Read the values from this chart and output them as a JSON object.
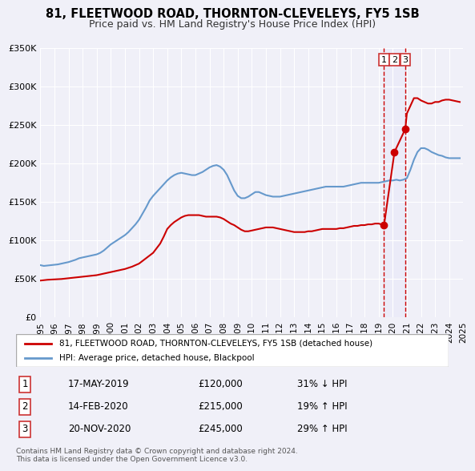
{
  "title": "81, FLEETWOOD ROAD, THORNTON-CLEVELEYS, FY5 1SB",
  "subtitle": "Price paid vs. HM Land Registry's House Price Index (HPI)",
  "ylabel": "",
  "xlim": [
    1995,
    2025
  ],
  "ylim": [
    0,
    350000
  ],
  "yticks": [
    0,
    50000,
    100000,
    150000,
    200000,
    250000,
    300000,
    350000
  ],
  "ytick_labels": [
    "£0",
    "£50K",
    "£100K",
    "£150K",
    "£200K",
    "£250K",
    "£300K",
    "£350K"
  ],
  "bg_color": "#f0f0f8",
  "plot_bg_color": "#f0f0f8",
  "grid_color": "#ffffff",
  "red_line_color": "#cc0000",
  "blue_line_color": "#6699cc",
  "sale_dot_color": "#cc0000",
  "dashed_line_color": "#cc0000",
  "sale_marker_color": "#cc0000",
  "legend_label_red": "81, FLEETWOOD ROAD, THORNTON-CLEVELEYS, FY5 1SB (detached house)",
  "legend_label_blue": "HPI: Average price, detached house, Blackpool",
  "transactions": [
    {
      "num": 1,
      "date": "17-MAY-2019",
      "price": 120000,
      "pct": "31%",
      "dir": "↓",
      "x": 2019.38
    },
    {
      "num": 2,
      "date": "14-FEB-2020",
      "price": 215000,
      "pct": "19%",
      "dir": "↑",
      "x": 2020.12
    },
    {
      "num": 3,
      "date": "20-NOV-2020",
      "price": 245000,
      "pct": "29%",
      "dir": "↑",
      "x": 2020.89
    }
  ],
  "vline_x1": 2019.38,
  "vline_x2": 2020.89,
  "footer": "Contains HM Land Registry data © Crown copyright and database right 2024.\nThis data is licensed under the Open Government Licence v3.0.",
  "hpi_data": {
    "x": [
      1995.0,
      1995.25,
      1995.5,
      1995.75,
      1996.0,
      1996.25,
      1996.5,
      1996.75,
      1997.0,
      1997.25,
      1997.5,
      1997.75,
      1998.0,
      1998.25,
      1998.5,
      1998.75,
      1999.0,
      1999.25,
      1999.5,
      1999.75,
      2000.0,
      2000.25,
      2000.5,
      2000.75,
      2001.0,
      2001.25,
      2001.5,
      2001.75,
      2002.0,
      2002.25,
      2002.5,
      2002.75,
      2003.0,
      2003.25,
      2003.5,
      2003.75,
      2004.0,
      2004.25,
      2004.5,
      2004.75,
      2005.0,
      2005.25,
      2005.5,
      2005.75,
      2006.0,
      2006.25,
      2006.5,
      2006.75,
      2007.0,
      2007.25,
      2007.5,
      2007.75,
      2008.0,
      2008.25,
      2008.5,
      2008.75,
      2009.0,
      2009.25,
      2009.5,
      2009.75,
      2010.0,
      2010.25,
      2010.5,
      2010.75,
      2011.0,
      2011.25,
      2011.5,
      2011.75,
      2012.0,
      2012.25,
      2012.5,
      2012.75,
      2013.0,
      2013.25,
      2013.5,
      2013.75,
      2014.0,
      2014.25,
      2014.5,
      2014.75,
      2015.0,
      2015.25,
      2015.5,
      2015.75,
      2016.0,
      2016.25,
      2016.5,
      2016.75,
      2017.0,
      2017.25,
      2017.5,
      2017.75,
      2018.0,
      2018.25,
      2018.5,
      2018.75,
      2019.0,
      2019.25,
      2019.5,
      2019.75,
      2020.0,
      2020.25,
      2020.5,
      2020.75,
      2021.0,
      2021.25,
      2021.5,
      2021.75,
      2022.0,
      2022.25,
      2022.5,
      2022.75,
      2023.0,
      2023.25,
      2023.5,
      2023.75,
      2024.0,
      2024.25,
      2024.5,
      2024.75
    ],
    "y": [
      68000,
      67000,
      67500,
      68000,
      68500,
      69000,
      70000,
      71000,
      72000,
      73500,
      75000,
      77000,
      78000,
      79000,
      80000,
      81000,
      82000,
      84000,
      87000,
      91000,
      95000,
      98000,
      101000,
      104000,
      107000,
      111000,
      116000,
      121000,
      127000,
      135000,
      143000,
      152000,
      158000,
      163000,
      168000,
      173000,
      178000,
      182000,
      185000,
      187000,
      188000,
      187000,
      186000,
      185000,
      185000,
      187000,
      189000,
      192000,
      195000,
      197000,
      198000,
      196000,
      192000,
      185000,
      175000,
      165000,
      158000,
      155000,
      155000,
      157000,
      160000,
      163000,
      163000,
      161000,
      159000,
      158000,
      157000,
      157000,
      157000,
      158000,
      159000,
      160000,
      161000,
      162000,
      163000,
      164000,
      165000,
      166000,
      167000,
      168000,
      169000,
      170000,
      170000,
      170000,
      170000,
      170000,
      170000,
      171000,
      172000,
      173000,
      174000,
      175000,
      175000,
      175000,
      175000,
      175000,
      175000,
      176000,
      177000,
      178000,
      178000,
      179000,
      178000,
      179000,
      181000,
      192000,
      205000,
      215000,
      220000,
      220000,
      218000,
      215000,
      213000,
      211000,
      210000,
      208000,
      207000,
      207000,
      207000,
      207000
    ]
  },
  "price_data": {
    "x": [
      1995.0,
      1995.5,
      1996.0,
      1996.5,
      1997.0,
      1997.5,
      1998.0,
      1998.5,
      1999.0,
      1999.5,
      2000.0,
      2000.5,
      2001.0,
      2001.5,
      2002.0,
      2002.5,
      2003.0,
      2003.25,
      2003.5,
      2003.75,
      2004.0,
      2004.25,
      2004.5,
      2004.75,
      2005.0,
      2005.25,
      2005.5,
      2005.75,
      2006.0,
      2006.25,
      2006.5,
      2006.75,
      2007.0,
      2007.25,
      2007.5,
      2007.75,
      2008.0,
      2008.25,
      2008.5,
      2008.75,
      2009.0,
      2009.25,
      2009.5,
      2009.75,
      2010.0,
      2010.25,
      2010.5,
      2010.75,
      2011.0,
      2011.25,
      2011.5,
      2011.75,
      2012.0,
      2012.25,
      2012.5,
      2012.75,
      2013.0,
      2013.25,
      2013.5,
      2013.75,
      2014.0,
      2014.25,
      2014.5,
      2014.75,
      2015.0,
      2015.25,
      2015.5,
      2015.75,
      2016.0,
      2016.25,
      2016.5,
      2016.75,
      2017.0,
      2017.25,
      2017.5,
      2017.75,
      2018.0,
      2018.25,
      2018.5,
      2018.75,
      2019.0,
      2019.38,
      2020.12,
      2020.89,
      2021.0,
      2021.25,
      2021.5,
      2021.75,
      2022.0,
      2022.25,
      2022.5,
      2022.75,
      2023.0,
      2023.25,
      2023.5,
      2023.75,
      2024.0,
      2024.25,
      2024.5,
      2024.75
    ],
    "y": [
      48000,
      49000,
      49500,
      50000,
      51000,
      52000,
      53000,
      54000,
      55000,
      57000,
      59000,
      61000,
      63000,
      66000,
      70000,
      77000,
      84000,
      90000,
      96000,
      105000,
      115000,
      120000,
      124000,
      127000,
      130000,
      132000,
      133000,
      133000,
      133000,
      133000,
      132000,
      131000,
      131000,
      131000,
      131000,
      130000,
      128000,
      125000,
      122000,
      120000,
      117000,
      114000,
      112000,
      112000,
      113000,
      114000,
      115000,
      116000,
      117000,
      117000,
      117000,
      116000,
      115000,
      114000,
      113000,
      112000,
      111000,
      111000,
      111000,
      111000,
      112000,
      112000,
      113000,
      114000,
      115000,
      115000,
      115000,
      115000,
      115000,
      116000,
      116000,
      117000,
      118000,
      119000,
      119000,
      120000,
      120000,
      121000,
      121000,
      122000,
      122000,
      120000,
      215000,
      245000,
      265000,
      275000,
      285000,
      285000,
      282000,
      280000,
      278000,
      278000,
      280000,
      280000,
      282000,
      283000,
      283000,
      282000,
      281000,
      280000
    ]
  }
}
